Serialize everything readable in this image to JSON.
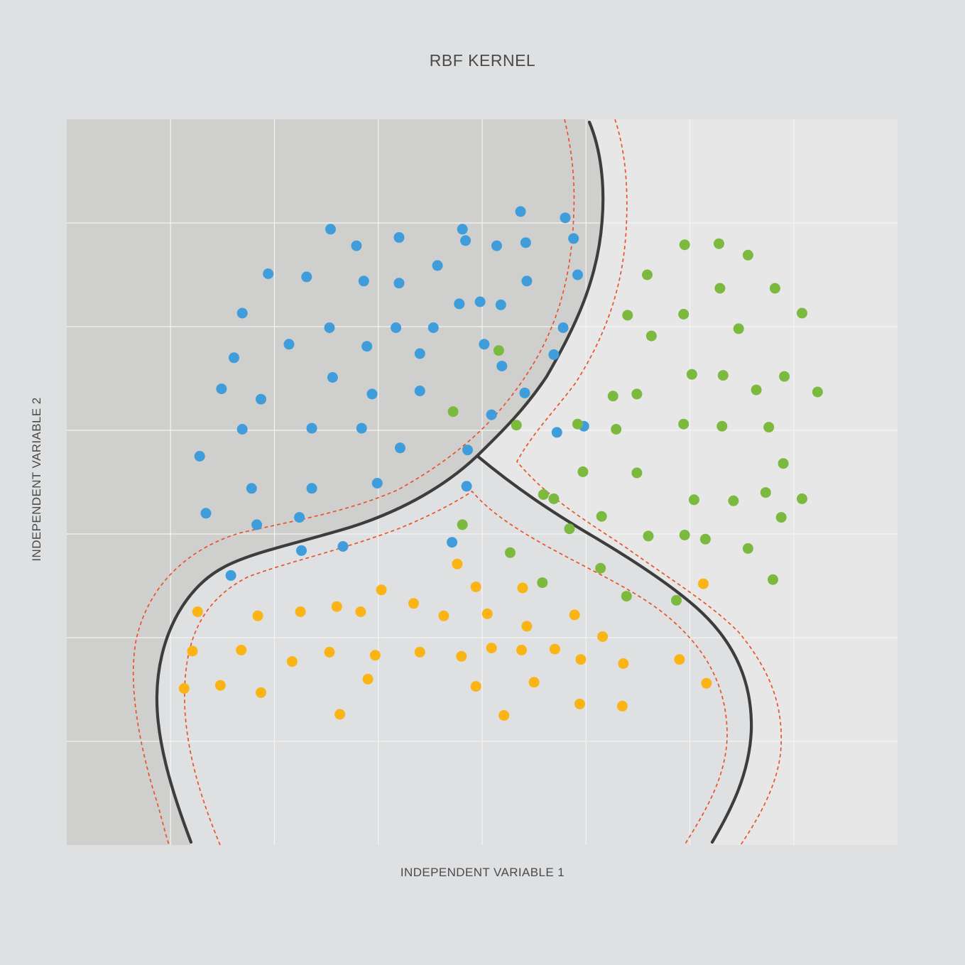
{
  "chart_data": {
    "type": "scatter",
    "title": "RBF KERNEL",
    "xlabel": "INDEPENDENT VARIABLE 1",
    "ylabel": "INDEPENDENT VARIABLE 2",
    "xlim": [
      0,
      8
    ],
    "ylim": [
      0,
      7
    ],
    "grid": true,
    "colors": {
      "background": "#dfe0e1",
      "region_blue": "#cfcfcd",
      "region_orange": "#dfe0e1",
      "region_green": "#e7e7e7",
      "grid": "#f4f4f4",
      "boundary": "#3d3d3d",
      "margin": "#e8542a"
    },
    "series": [
      {
        "color": "#3f9ddb",
        "points": [
          [
            4.37,
            6.11
          ],
          [
            4.8,
            6.05
          ],
          [
            2.54,
            5.94
          ],
          [
            3.81,
            5.94
          ],
          [
            4.88,
            5.85
          ],
          [
            2.79,
            5.78
          ],
          [
            3.2,
            5.86
          ],
          [
            3.84,
            5.83
          ],
          [
            4.14,
            5.78
          ],
          [
            4.42,
            5.81
          ],
          [
            1.94,
            5.51
          ],
          [
            2.31,
            5.48
          ],
          [
            2.86,
            5.44
          ],
          [
            3.2,
            5.42
          ],
          [
            3.57,
            5.59
          ],
          [
            4.43,
            5.44
          ],
          [
            4.92,
            5.5
          ],
          [
            1.69,
            5.13
          ],
          [
            2.53,
            4.99
          ],
          [
            3.78,
            5.22
          ],
          [
            3.98,
            5.24
          ],
          [
            4.18,
            5.21
          ],
          [
            2.14,
            4.83
          ],
          [
            2.89,
            4.81
          ],
          [
            3.17,
            4.99
          ],
          [
            3.53,
            4.99
          ],
          [
            4.02,
            4.83
          ],
          [
            4.78,
            4.99
          ],
          [
            1.61,
            4.7
          ],
          [
            2.56,
            4.51
          ],
          [
            3.4,
            4.74
          ],
          [
            4.19,
            4.62
          ],
          [
            4.69,
            4.73
          ],
          [
            1.49,
            4.4
          ],
          [
            1.87,
            4.3
          ],
          [
            2.94,
            4.35
          ],
          [
            3.4,
            4.38
          ],
          [
            4.09,
            4.15
          ],
          [
            4.41,
            4.36
          ],
          [
            1.69,
            4.01
          ],
          [
            2.36,
            4.02
          ],
          [
            2.84,
            4.02
          ],
          [
            3.21,
            3.83
          ],
          [
            3.86,
            3.81
          ],
          [
            4.72,
            3.98
          ],
          [
            4.98,
            4.04
          ],
          [
            1.28,
            3.75
          ],
          [
            1.78,
            3.44
          ],
          [
            2.36,
            3.44
          ],
          [
            2.99,
            3.49
          ],
          [
            3.85,
            3.46
          ],
          [
            1.34,
            3.2
          ],
          [
            1.83,
            3.09
          ],
          [
            2.24,
            3.16
          ],
          [
            2.26,
            2.84
          ],
          [
            2.66,
            2.88
          ],
          [
            3.71,
            2.92
          ],
          [
            1.58,
            2.6
          ]
        ]
      },
      {
        "color": "#7cba3f",
        "points": [
          [
            5.95,
            5.79
          ],
          [
            6.28,
            5.8
          ],
          [
            6.56,
            5.69
          ],
          [
            5.59,
            5.5
          ],
          [
            6.29,
            5.37
          ],
          [
            6.82,
            5.37
          ],
          [
            5.94,
            5.12
          ],
          [
            6.47,
            4.98
          ],
          [
            7.08,
            5.13
          ],
          [
            5.4,
            5.11
          ],
          [
            5.63,
            4.91
          ],
          [
            4.16,
            4.77
          ],
          [
            6.02,
            4.54
          ],
          [
            6.32,
            4.53
          ],
          [
            6.64,
            4.39
          ],
          [
            6.91,
            4.52
          ],
          [
            5.26,
            4.33
          ],
          [
            5.49,
            4.35
          ],
          [
            7.23,
            4.37
          ],
          [
            3.72,
            4.18
          ],
          [
            4.33,
            4.05
          ],
          [
            4.92,
            4.06
          ],
          [
            5.29,
            4.01
          ],
          [
            5.94,
            4.06
          ],
          [
            6.31,
            4.04
          ],
          [
            6.76,
            4.03
          ],
          [
            6.9,
            3.68
          ],
          [
            4.97,
            3.6
          ],
          [
            5.49,
            3.59
          ],
          [
            4.59,
            3.38
          ],
          [
            6.04,
            3.33
          ],
          [
            6.42,
            3.32
          ],
          [
            6.73,
            3.4
          ],
          [
            7.08,
            3.34
          ],
          [
            4.69,
            3.34
          ],
          [
            5.15,
            3.17
          ],
          [
            6.88,
            3.16
          ],
          [
            3.81,
            3.09
          ],
          [
            5.6,
            2.98
          ],
          [
            4.84,
            3.05
          ],
          [
            5.95,
            2.99
          ],
          [
            6.56,
            2.86
          ],
          [
            6.15,
            2.95
          ],
          [
            4.27,
            2.82
          ],
          [
            5.14,
            2.67
          ],
          [
            6.8,
            2.56
          ],
          [
            4.58,
            2.53
          ],
          [
            5.39,
            2.4
          ],
          [
            5.87,
            2.36
          ]
        ]
      },
      {
        "color": "#fbb415",
        "points": [
          [
            3.76,
            2.71
          ],
          [
            6.13,
            2.52
          ],
          [
            3.03,
            2.46
          ],
          [
            3.94,
            2.49
          ],
          [
            4.39,
            2.48
          ],
          [
            1.26,
            2.25
          ],
          [
            1.84,
            2.21
          ],
          [
            2.25,
            2.25
          ],
          [
            2.6,
            2.3
          ],
          [
            2.83,
            2.25
          ],
          [
            3.34,
            2.33
          ],
          [
            3.63,
            2.21
          ],
          [
            4.05,
            2.23
          ],
          [
            4.43,
            2.11
          ],
          [
            4.89,
            2.22
          ],
          [
            5.16,
            2.01
          ],
          [
            1.21,
            1.87
          ],
          [
            1.68,
            1.88
          ],
          [
            2.17,
            1.77
          ],
          [
            2.53,
            1.86
          ],
          [
            2.97,
            1.83
          ],
          [
            3.4,
            1.86
          ],
          [
            3.8,
            1.82
          ],
          [
            4.09,
            1.9
          ],
          [
            4.38,
            1.88
          ],
          [
            4.7,
            1.89
          ],
          [
            4.95,
            1.79
          ],
          [
            5.36,
            1.75
          ],
          [
            5.9,
            1.79
          ],
          [
            1.13,
            1.51
          ],
          [
            1.48,
            1.54
          ],
          [
            1.87,
            1.47
          ],
          [
            2.9,
            1.6
          ],
          [
            3.94,
            1.53
          ],
          [
            4.5,
            1.57
          ],
          [
            6.16,
            1.56
          ],
          [
            2.63,
            1.26
          ],
          [
            4.21,
            1.25
          ],
          [
            4.94,
            1.36
          ],
          [
            5.35,
            1.34
          ]
        ]
      }
    ]
  }
}
